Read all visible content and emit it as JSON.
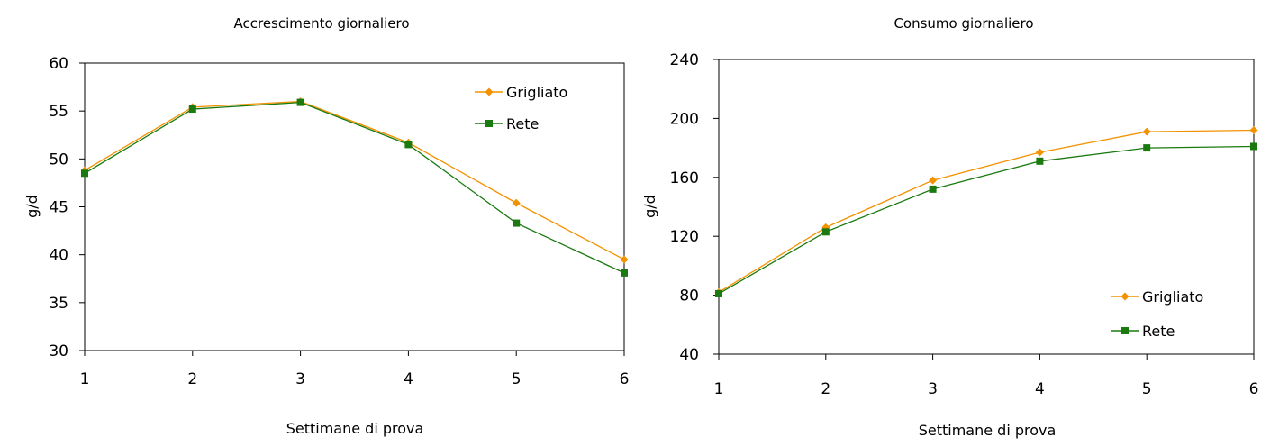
{
  "colors": {
    "grigliato": "#f39200",
    "rete": "#1a7a10",
    "frame": "#000000"
  },
  "chart_data": [
    {
      "type": "line",
      "title": "Accrescimento giornaliero",
      "xlabel": "Settimane di prova",
      "ylabel": "g/d",
      "x": [
        1,
        2,
        3,
        4,
        5,
        6
      ],
      "ylim": [
        30,
        60
      ],
      "yticks": [
        30,
        35,
        40,
        45,
        50,
        55,
        60
      ],
      "legend_position": "top-right",
      "grid": false,
      "series": [
        {
          "name": "Grigliato",
          "marker": "diamond",
          "color": "#f39200",
          "values": [
            48.8,
            55.4,
            56.0,
            51.7,
            45.4,
            39.5
          ]
        },
        {
          "name": "Rete",
          "marker": "square",
          "color": "#1a7a10",
          "values": [
            48.5,
            55.2,
            55.9,
            51.5,
            43.3,
            38.1
          ]
        }
      ]
    },
    {
      "type": "line",
      "title": "Consumo giornaliero",
      "xlabel": "Settimane di prova",
      "ylabel": "g/d",
      "x": [
        1,
        2,
        3,
        4,
        5,
        6
      ],
      "ylim": [
        40,
        240
      ],
      "yticks": [
        40,
        80,
        120,
        160,
        200,
        240
      ],
      "legend_position": "bottom-right",
      "grid": false,
      "series": [
        {
          "name": "Grigliato",
          "marker": "diamond",
          "color": "#f39200",
          "values": [
            82,
            126,
            158,
            177,
            191,
            192
          ]
        },
        {
          "name": "Rete",
          "marker": "square",
          "color": "#1a7a10",
          "values": [
            81,
            123,
            152,
            171,
            180,
            181
          ]
        }
      ]
    }
  ]
}
